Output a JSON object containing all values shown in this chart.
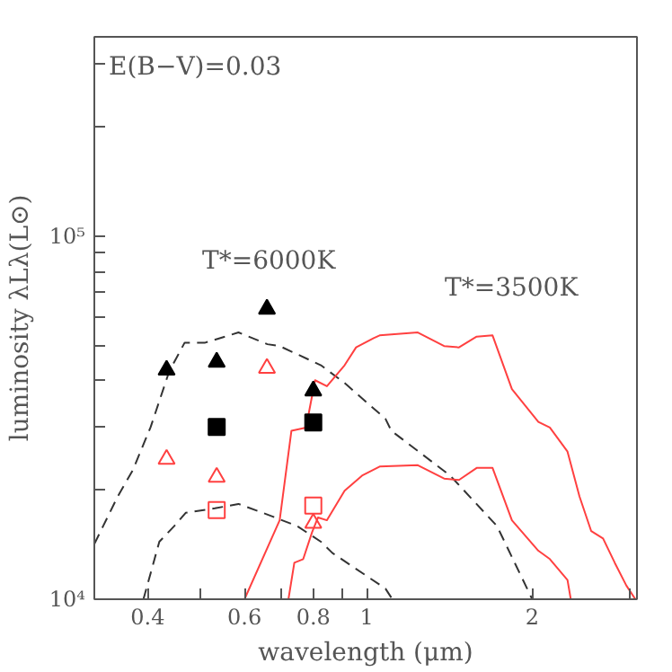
{
  "chart_data": {
    "type": "scatter",
    "xlabel": "wavelength (μm)",
    "ylabel": "luminosity λLλ(L⊙)",
    "log": "xy",
    "grid": false,
    "xlim": [
      0.32,
      3.1
    ],
    "ylim": [
      10000,
      354000
    ],
    "xticks": [
      0.4,
      {
        "value": 0.5,
        "label": null
      },
      0.6,
      {
        "value": 0.7,
        "label": null
      },
      0.8,
      {
        "value": 0.9,
        "label": null
      },
      1,
      2,
      {
        "value": 3,
        "label": null
      }
    ],
    "yticks": [
      {
        "value": 10000,
        "label": "10⁴"
      },
      {
        "value": 20000,
        "label": null
      },
      {
        "value": 30000,
        "label": null
      },
      {
        "value": 40000,
        "label": null
      },
      {
        "value": 50000,
        "label": null
      },
      {
        "value": 60000,
        "label": null
      },
      {
        "value": 70000,
        "label": null
      },
      {
        "value": 80000,
        "label": null
      },
      {
        "value": 90000,
        "label": null
      },
      {
        "value": 100000,
        "label": "10⁵"
      },
      {
        "value": 200000,
        "label": null
      },
      {
        "value": 300000,
        "label": null
      }
    ],
    "annotations": [
      "E(B−V)=0.03",
      "T*=6000K",
      "T*=3500K"
    ],
    "series": [
      {
        "type": "line",
        "line_style": "dashed",
        "color": "#333333",
        "x": [
          0.32,
          0.332,
          0.353,
          0.376,
          0.405,
          0.438,
          0.467,
          0.509,
          0.585,
          0.66,
          0.695,
          0.826,
          0.912,
          1.082,
          1.109,
          1.419,
          1.726,
          2.0
        ],
        "values": [
          14200,
          15900,
          19200,
          22700,
          29800,
          42500,
          50900,
          50900,
          54300,
          50400,
          49800,
          44100,
          39400,
          31400,
          29100,
          21900,
          15900,
          10000
        ]
      },
      {
        "type": "line",
        "line_style": "dashed",
        "color": "#333333",
        "x": [
          0.393,
          0.42,
          0.447,
          0.469,
          0.53,
          0.585,
          0.661,
          0.748,
          0.826,
          0.867,
          1.082,
          1.109
        ],
        "values": [
          10000,
          14400,
          15900,
          17300,
          17800,
          18300,
          17100,
          15900,
          14400,
          13400,
          10700,
          10100
        ]
      },
      {
        "type": "line",
        "line_style": "solid",
        "color": "#ff4040",
        "x": [
          0.6,
          0.695,
          0.73,
          0.776,
          0.806,
          0.847,
          0.912,
          0.957,
          1.03,
          1.056,
          1.239,
          1.383,
          1.472,
          1.585,
          1.694,
          1.837,
          2.052,
          2.153,
          2.318,
          2.437,
          2.56,
          2.69,
          2.825,
          2.966,
          3.08
        ],
        "values": [
          10000,
          16500,
          29100,
          29700,
          40100,
          38600,
          44100,
          49400,
          52400,
          53300,
          54300,
          49800,
          49400,
          52900,
          53300,
          37900,
          30800,
          29700,
          25500,
          19200,
          15400,
          14700,
          12600,
          10900,
          10000
        ]
      },
      {
        "type": "line",
        "line_style": "solid",
        "color": "#ff4040",
        "x": [
          0.721,
          0.739,
          0.767,
          0.796,
          0.816,
          0.847,
          0.912,
          0.981,
          1.056,
          1.239,
          1.383,
          1.472,
          1.585,
          1.694,
          1.837,
          2.052,
          2.153,
          2.318,
          2.35
        ],
        "values": [
          10000,
          12600,
          12900,
          15300,
          16800,
          16500,
          19900,
          21900,
          23200,
          23400,
          21500,
          21300,
          23000,
          23000,
          16500,
          13600,
          12900,
          11300,
          10000
        ]
      },
      {
        "marker": "triangle",
        "color": "#000000",
        "x": [
          0.433,
          0.534,
          0.659,
          0.8
        ],
        "values": [
          42800,
          45000,
          63000,
          37500
        ]
      },
      {
        "marker": "square",
        "color": "#000000",
        "x": [
          0.534,
          0.8
        ],
        "values": [
          29800,
          30700
        ]
      },
      {
        "marker": "triangle",
        "color": "#ff4040",
        "x": [
          0.433,
          0.534,
          0.659,
          0.8
        ],
        "values": [
          24300,
          21700,
          43300,
          16200
        ]
      },
      {
        "marker": "square",
        "color": "#ff4040",
        "x": [
          0.534,
          0.8
        ],
        "values": [
          17600,
          18100
        ]
      }
    ]
  }
}
